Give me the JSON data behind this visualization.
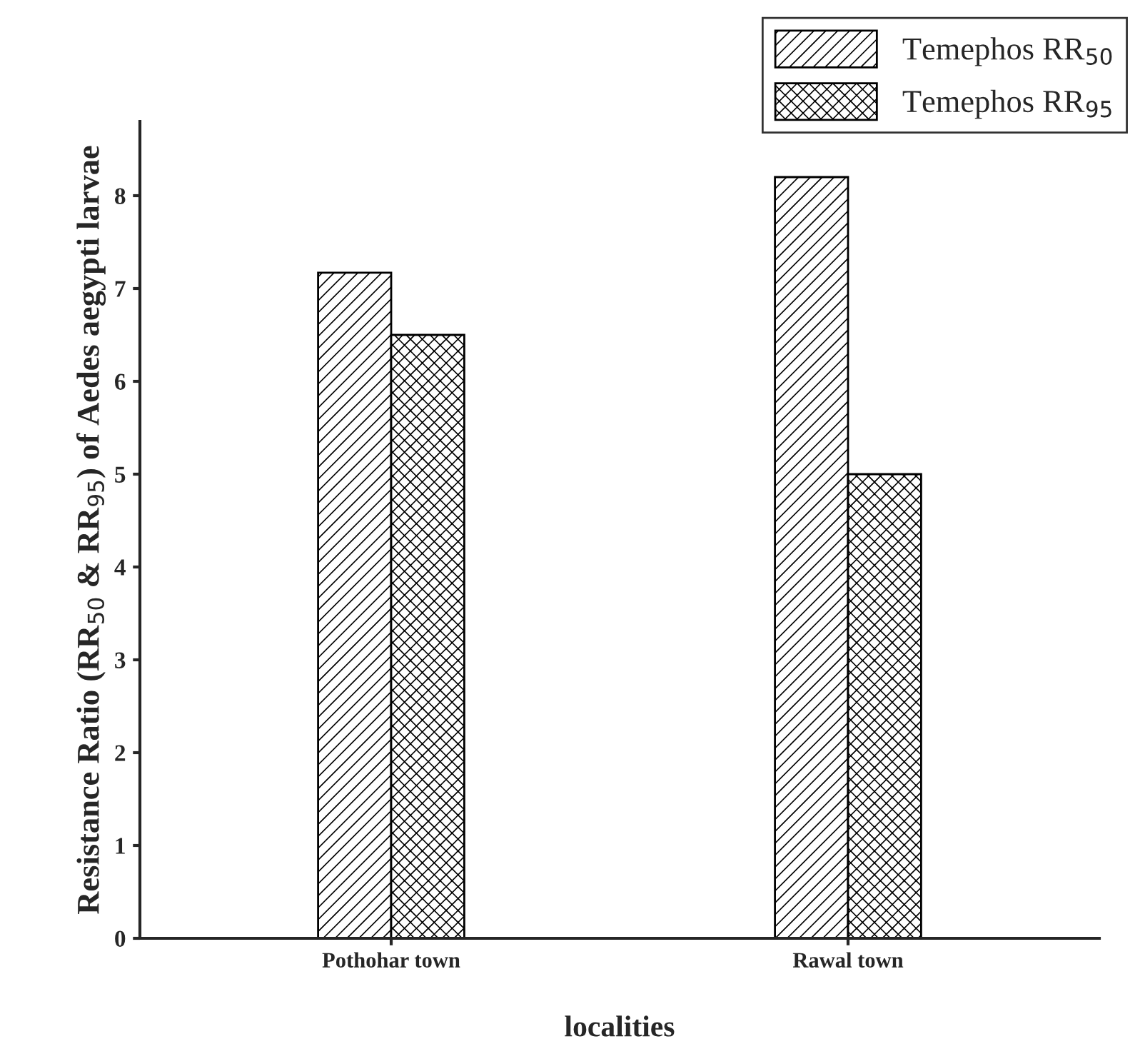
{
  "chart_data": {
    "type": "bar",
    "categories": [
      "Pothohar town",
      "Rawal town"
    ],
    "series": [
      {
        "name": "Temephos RR$_{50}$",
        "color": "#000000",
        "values": [
          7.17,
          8.2
        ]
      },
      {
        "name": "Temephos RR$_{95}$",
        "color": "#000000",
        "values": [
          6.5,
          5.0
        ]
      }
    ],
    "xlabel": "localities",
    "ylabel": "Resistance Ratio (RR$_{50}$ & RR$_{95}$) of Aedes aegypti larvae",
    "ylim": [
      0,
      8.8
    ],
    "yticks": [
      0,
      1,
      2,
      3,
      4,
      5,
      6,
      7,
      8
    ],
    "grid": false,
    "legend": "top right"
  }
}
